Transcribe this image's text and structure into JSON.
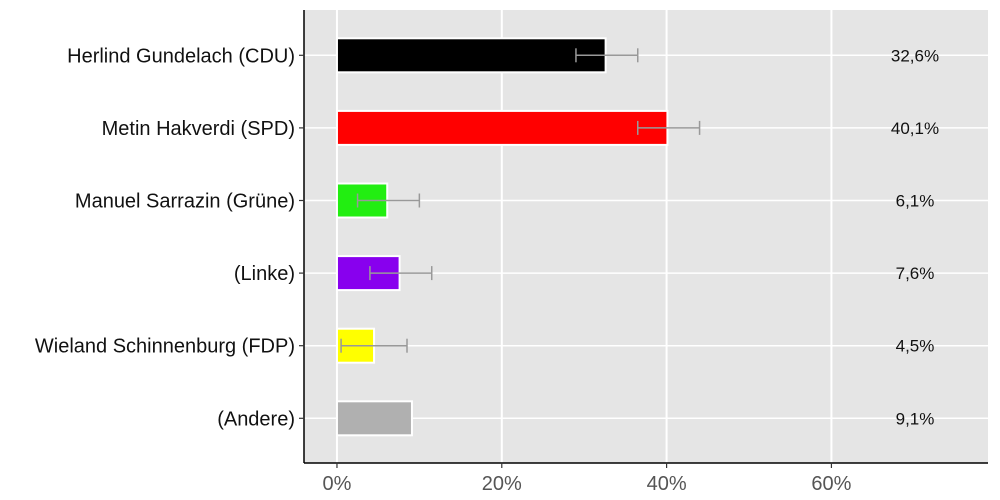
{
  "chart_data": {
    "type": "bar",
    "orientation": "horizontal",
    "categories": [
      "Herlind Gundelach (CDU)",
      "Metin Hakverdi (SPD)",
      "Manuel Sarrazin (Grüne)",
      "(Linke)",
      "Wieland Schinnenburg (FDP)",
      "(Andere)"
    ],
    "values": [
      32.6,
      40.1,
      6.1,
      7.6,
      4.5,
      9.1
    ],
    "value_labels": [
      "32,6%",
      "40,1%",
      "6,1%",
      "7,6%",
      "4,5%",
      "9,1%"
    ],
    "error_bars": [
      [
        29.0,
        36.5
      ],
      [
        36.5,
        44.0
      ],
      [
        2.5,
        10.0
      ],
      [
        4.0,
        11.5
      ],
      [
        0.5,
        8.5
      ],
      null
    ],
    "colors": [
      "#000000",
      "#ff0000",
      "#22ee11",
      "#8800ee",
      "#ffff00",
      "#b0b0b0"
    ],
    "x_ticks": [
      0,
      20,
      40,
      60
    ],
    "x_tick_labels": [
      "0%",
      "20%",
      "40%",
      "60%"
    ],
    "xlim": [
      -4,
      79
    ],
    "grid": true,
    "background": "#e5e5e5",
    "title": "",
    "xlabel": "",
    "ylabel": ""
  }
}
